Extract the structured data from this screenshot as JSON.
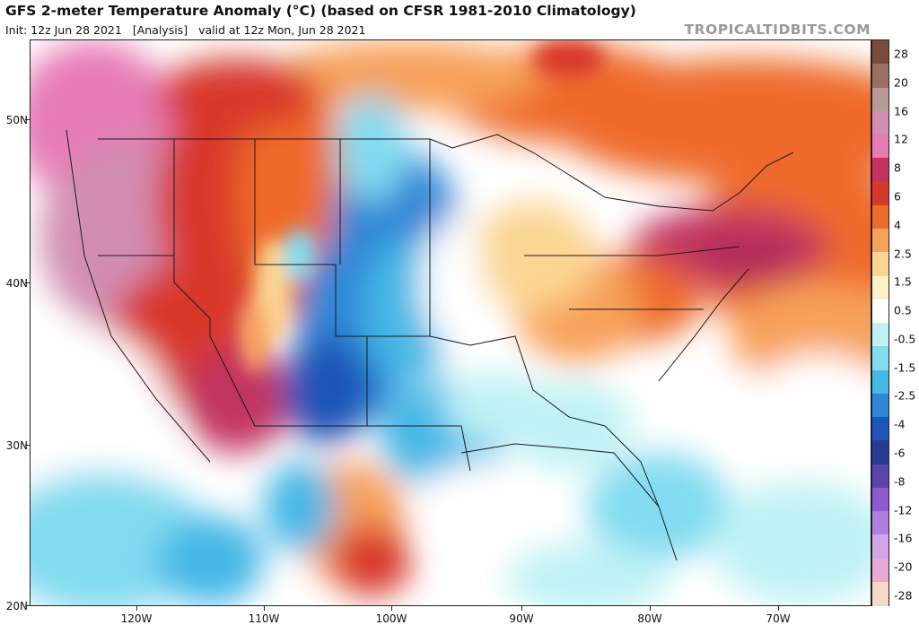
{
  "header": {
    "title": "GFS 2-meter Temperature Anomaly (°C) (based on CFSR 1981-2010 Climatology)",
    "init": "Init: 12z Jun 28 2021",
    "analysis": "[Analysis]",
    "valid": "valid at 12z Mon, Jun 28 2021",
    "brand": "TROPICALTIDBITS.COM"
  },
  "axes": {
    "lat_labels": [
      "50N",
      "40N",
      "30N",
      "20N"
    ],
    "lon_labels": [
      "120W",
      "110W",
      "100W",
      "90W",
      "80W",
      "70W"
    ]
  },
  "colorbar": {
    "labels": [
      "28",
      "20",
      "16",
      "12",
      "8",
      "6",
      "4",
      "2.5",
      "1.5",
      "0.5",
      "-0.5",
      "-1.5",
      "-2.5",
      "-4",
      "-6",
      "-8",
      "-12",
      "-16",
      "-20",
      "-28"
    ],
    "colors": [
      "#7a4a3a",
      "#9a6f66",
      "#b99a96",
      "#d28eb2",
      "#e77bb6",
      "#c2345e",
      "#d8382b",
      "#ef6b2c",
      "#f7a15a",
      "#fbd592",
      "#fdf3c6",
      "#ffffff",
      "#bff2f5",
      "#82dbf0",
      "#45b8e6",
      "#2f86d6",
      "#1d55b8",
      "#273a94",
      "#5a45b0",
      "#8f5ad0",
      "#b07ee0",
      "#d4a4e8",
      "#eaaad6",
      "#f8d8c6"
    ]
  }
}
